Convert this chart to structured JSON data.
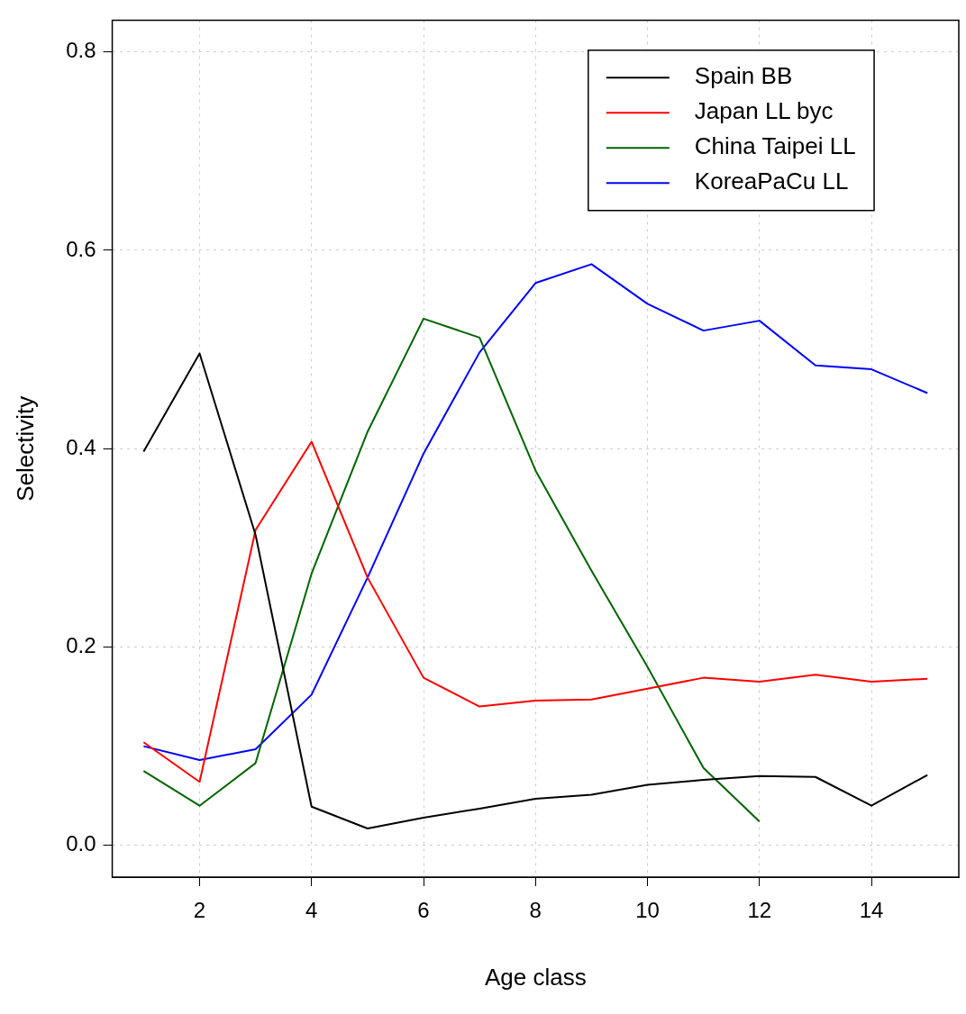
{
  "chart_data": {
    "type": "line",
    "xlabel": "Age class",
    "ylabel": "Selectivity",
    "x": [
      1,
      2,
      3,
      4,
      5,
      6,
      7,
      8,
      9,
      10,
      11,
      12,
      13,
      14,
      15
    ],
    "series": [
      {
        "name": "Spain BB",
        "color": "#000000",
        "values": [
          0.397,
          0.496,
          0.313,
          0.039,
          0.017,
          0.028,
          0.037,
          0.047,
          0.051,
          0.061,
          0.066,
          0.07,
          0.069,
          0.04,
          0.071
        ]
      },
      {
        "name": "Japan LL byc",
        "color": "#ff0000",
        "values": [
          0.104,
          0.064,
          0.318,
          0.407,
          0.27,
          0.169,
          0.14,
          0.146,
          0.147,
          0.158,
          0.169,
          0.165,
          0.172,
          0.165,
          0.168
        ]
      },
      {
        "name": "China Taipei LL",
        "color": "#006400",
        "values": [
          0.075,
          0.04,
          0.083,
          0.274,
          0.417,
          0.531,
          0.512,
          0.378,
          0.277,
          0.18,
          0.078,
          0.024,
          null,
          null,
          null
        ]
      },
      {
        "name": "KoreaPaCu LL",
        "color": "#0000ff",
        "values": [
          0.1,
          0.086,
          0.097,
          0.152,
          0.27,
          0.395,
          0.497,
          0.567,
          0.586,
          0.546,
          0.519,
          0.529,
          0.484,
          0.48,
          0.456
        ]
      }
    ],
    "xlim": [
      0.44,
      15.56
    ],
    "xticks": [
      2,
      4,
      6,
      8,
      10,
      12,
      14
    ],
    "ylim": [
      -0.032,
      0.832
    ],
    "yticks": [
      {
        "value": 0,
        "label": "0.0"
      },
      {
        "value": 0.2,
        "label": "0.2"
      },
      {
        "value": 0.4,
        "label": "0.4"
      },
      {
        "value": 0.6,
        "label": "0.6"
      },
      {
        "value": 0.8,
        "label": "0.8"
      }
    ],
    "grid": true,
    "legend": "top right",
    "marker": "none",
    "line_style": "solid"
  }
}
